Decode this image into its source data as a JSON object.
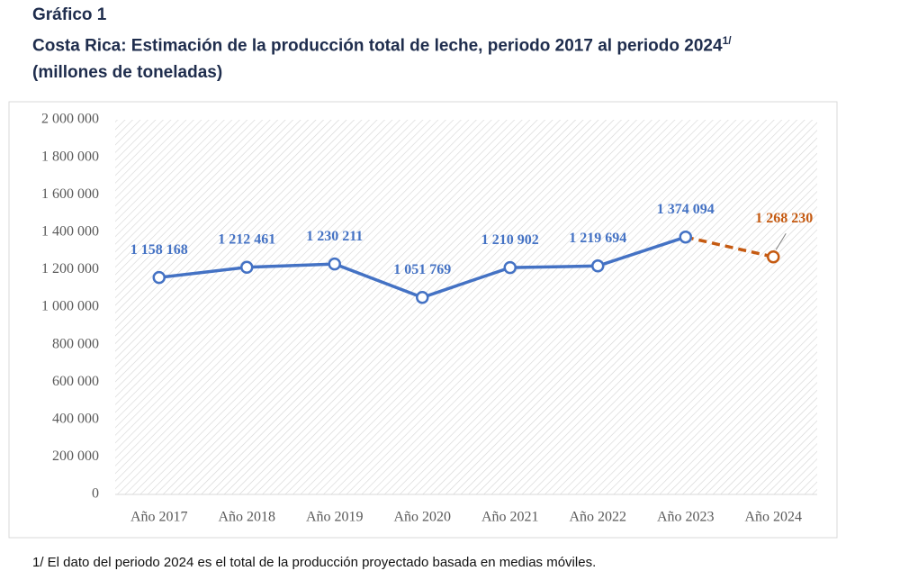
{
  "chart_data": {
    "type": "line",
    "heading": "Gráfico 1",
    "title": "Costa Rica: Estimación de la producción total de leche, periodo 2017 al periodo 2024",
    "title_note": "1/",
    "subtitle": "(millones de toneladas)",
    "footnote": "1/ El dato del periodo 2024 es el total de la producción proyectado basada en medias móviles.",
    "categories": [
      "Año 2017",
      "Año 2018",
      "Año 2019",
      "Año 2020",
      "Año 2021",
      "Año 2022",
      "Año 2023",
      "Año 2024"
    ],
    "series": [
      {
        "color": "#4472c4",
        "dashed": false,
        "values": [
          1158168,
          1212461,
          1230211,
          1051769,
          1210902,
          1219694,
          1374094,
          null
        ],
        "value_labels": [
          "1 158 168",
          "1 212 461",
          "1 230 211",
          "1 051 769",
          "1 210 902",
          "1 219 694",
          "1 374 094",
          null
        ]
      },
      {
        "color": "#c55a11",
        "dashed": true,
        "values": [
          null,
          null,
          null,
          null,
          null,
          null,
          1374094,
          1268230
        ],
        "value_labels": [
          null,
          null,
          null,
          null,
          null,
          null,
          null,
          "1 268 230"
        ]
      }
    ],
    "ylim": [
      0,
      2000000
    ],
    "yticks": [
      0,
      {
        "value": 200000,
        "label": "200 000"
      },
      {
        "value": 400000,
        "label": "400 000"
      },
      {
        "value": 600000,
        "label": "600 000"
      },
      {
        "value": 800000,
        "label": "800 000"
      },
      {
        "value": 1000000,
        "label": "1 000 000"
      },
      {
        "value": 1200000,
        "label": "1 200 000"
      },
      {
        "value": 1400000,
        "label": "1 400 000"
      },
      {
        "value": 1600000,
        "label": "1 600 000"
      },
      {
        "value": 1800000,
        "label": "1 800 000"
      },
      {
        "value": 2000000,
        "label": "2 000 000"
      }
    ],
    "grid": false
  }
}
